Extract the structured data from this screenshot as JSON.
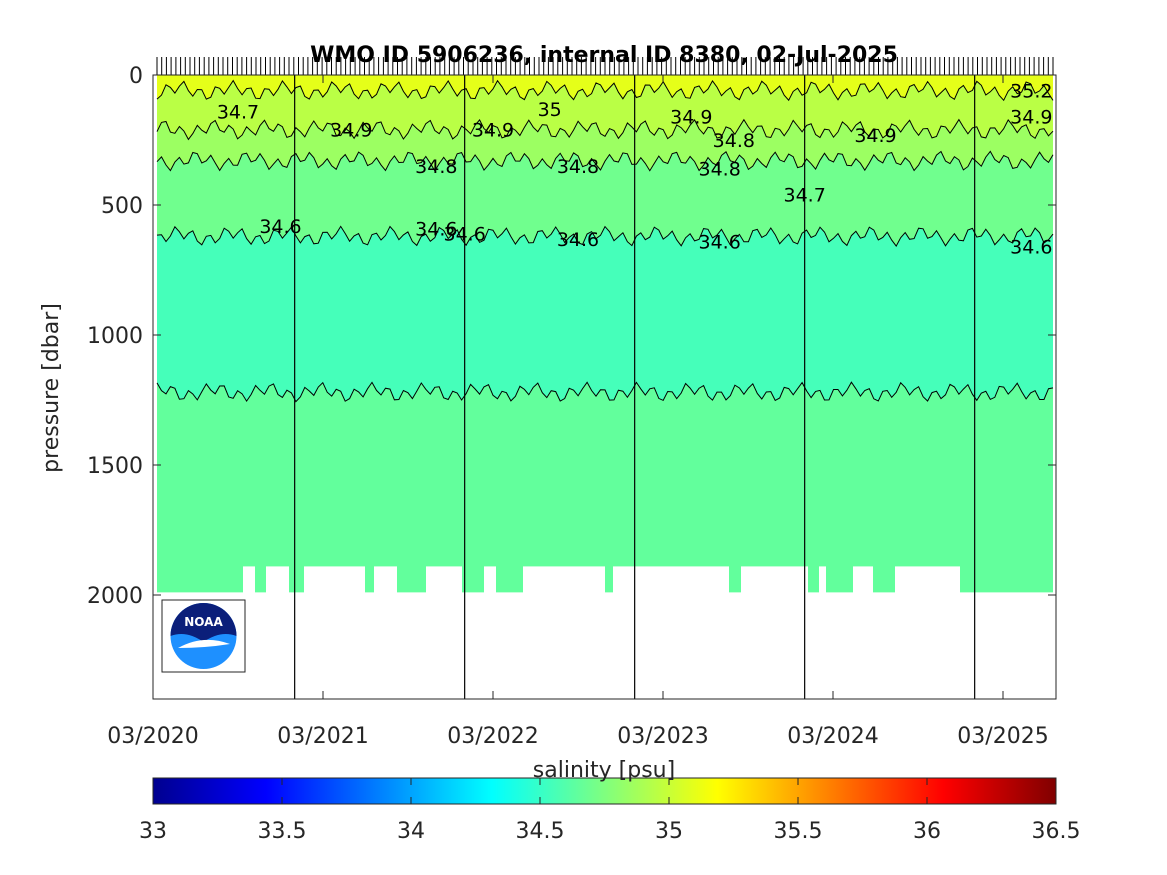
{
  "chart_data": {
    "type": "heatmap",
    "title": "WMO ID 5906236, internal ID 8380, 02-Jul-2025",
    "xlabel": "",
    "ylabel": "pressure [dbar]",
    "colorbar_label": "salinity [psu]",
    "x_ticks": [
      "03/2020",
      "03/2021",
      "03/2022",
      "03/2023",
      "03/2024",
      "03/2025"
    ],
    "y_ticks": [
      0,
      500,
      1000,
      1500,
      2000
    ],
    "ylim": [
      2400,
      0
    ],
    "y_reversed": true,
    "colorbar_ticks": [
      33,
      33.5,
      34,
      34.5,
      35,
      35.5,
      36,
      36.5
    ],
    "colorbar_range": [
      33,
      36.5
    ],
    "colormap": "jet",
    "year_marks": [
      "2021",
      "2022",
      "2023",
      "2024",
      "2025"
    ],
    "contour_levels": [
      34.6,
      34.7,
      34.8,
      34.9,
      35
    ],
    "salinity_layers": [
      {
        "top_dbar": 0,
        "bottom_dbar": 60,
        "salinity": 35.1
      },
      {
        "top_dbar": 60,
        "bottom_dbar": 210,
        "salinity": 34.95
      },
      {
        "top_dbar": 210,
        "bottom_dbar": 330,
        "salinity": 34.85
      },
      {
        "top_dbar": 330,
        "bottom_dbar": 620,
        "salinity": 34.7
      },
      {
        "top_dbar": 620,
        "bottom_dbar": 1220,
        "salinity": 34.55
      },
      {
        "top_dbar": 1220,
        "bottom_dbar": 2000,
        "salinity": 34.65
      }
    ],
    "contour_labels": [
      {
        "text": "34.6",
        "x": "2020-12",
        "pressure": 580
      },
      {
        "text": "34.6",
        "x": "2021-11",
        "pressure": 590
      },
      {
        "text": "34.6",
        "x": "2022-01",
        "pressure": 610
      },
      {
        "text": "34.6",
        "x": "2022-09",
        "pressure": 630
      },
      {
        "text": "34.6",
        "x": "2023-07",
        "pressure": 640
      },
      {
        "text": "34.6",
        "x": "2025-05",
        "pressure": 660
      },
      {
        "text": "34.7",
        "x": "2020-09",
        "pressure": 140
      },
      {
        "text": "34.7",
        "x": "2024-01",
        "pressure": 460
      },
      {
        "text": "34.8",
        "x": "2021-11",
        "pressure": 350
      },
      {
        "text": "34.8",
        "x": "2022-09",
        "pressure": 350
      },
      {
        "text": "34.8",
        "x": "2023-07",
        "pressure": 360
      },
      {
        "text": "34.8",
        "x": "2023-08",
        "pressure": 250
      },
      {
        "text": "34.9",
        "x": "2021-05",
        "pressure": 210
      },
      {
        "text": "34.9",
        "x": "2022-03",
        "pressure": 210
      },
      {
        "text": "34.9",
        "x": "2023-05",
        "pressure": 160
      },
      {
        "text": "34.9",
        "x": "2024-06",
        "pressure": 230
      },
      {
        "text": "34.9",
        "x": "2025-05",
        "pressure": 160
      },
      {
        "text": "35",
        "x": "2022-07",
        "pressure": 130
      },
      {
        "text": "35.2",
        "x": "2025-05",
        "pressure": 60
      }
    ]
  },
  "colors": {
    "jet": [
      "#00008f",
      "#0000ff",
      "#00ffff",
      "#7fff7f",
      "#ffff00",
      "#ff0000",
      "#800000"
    ],
    "plot_background": "#ffffff"
  },
  "logo": {
    "text": "NOAA",
    "icon": "noaa-logo-icon"
  }
}
